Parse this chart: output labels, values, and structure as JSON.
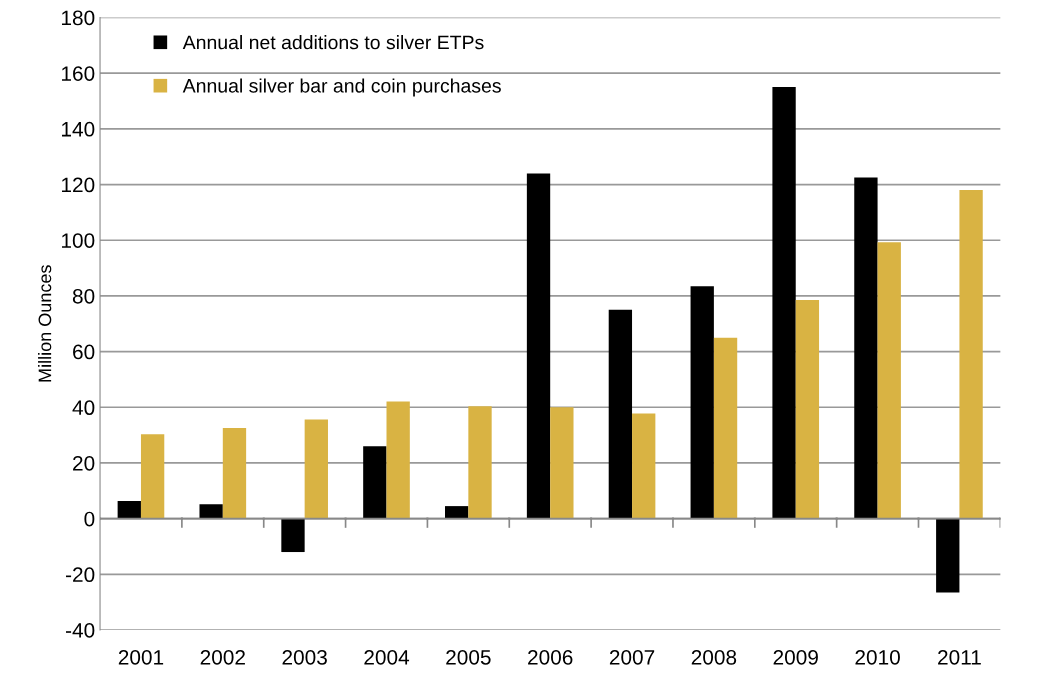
{
  "chart_data": {
    "type": "bar",
    "ylabel": "Million Ounces",
    "categories": [
      "2001",
      "2002",
      "2003",
      "2004",
      "2005",
      "2006",
      "2007",
      "2008",
      "2009",
      "2010",
      "2011"
    ],
    "series": [
      {
        "name": "Annual net additions to silver ETPs",
        "color": "#000000",
        "values": [
          6.3,
          5.2,
          -12,
          26,
          4.5,
          124,
          75,
          83.5,
          155,
          122.5,
          -26.5
        ]
      },
      {
        "name": "Annual silver bar and coin purchases",
        "color": "#d9b343",
        "values": [
          30.3,
          32.6,
          35.6,
          42.1,
          40.4,
          40,
          37.8,
          65,
          78.5,
          99.3,
          118
        ]
      }
    ],
    "ylim": [
      -40,
      180
    ],
    "yticks": [
      -40,
      -20,
      0,
      20,
      40,
      60,
      80,
      100,
      120,
      140,
      160,
      180
    ],
    "grid": "y",
    "legend": "top left"
  }
}
